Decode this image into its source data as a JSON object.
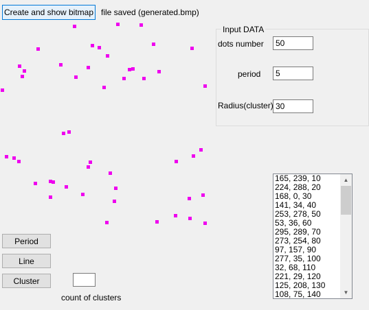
{
  "top": {
    "create_button_label": "Create and show bitmap",
    "status_text": "file saved (generated.bmp)"
  },
  "input_group": {
    "title": "Input DATA",
    "dots_label": "dots number",
    "dots_value": "50",
    "period_label": "period",
    "period_value": "5",
    "radius_label": "Radius(cluster)",
    "radius_value": "30"
  },
  "dot_color": "#ee00ee",
  "list": {
    "items": [
      "165, 239, 10",
      "224, 288, 20",
      "168, 0, 30",
      "141, 34, 40",
      "253, 278, 50",
      "53, 36, 60",
      "295, 289, 70",
      "273, 254, 80",
      "97, 157, 90",
      "277, 35, 100",
      "32, 68, 110",
      "221, 29, 120",
      "125, 208, 130",
      "108, 75, 140"
    ],
    "scroll_up_icon": "chevron-up-icon",
    "scroll_down_icon": "chevron-down-icon"
  },
  "bottom": {
    "period_button": "Period",
    "line_button": "Line",
    "cluster_button": "Cluster",
    "count_value": "",
    "count_label": "count of clusters"
  }
}
